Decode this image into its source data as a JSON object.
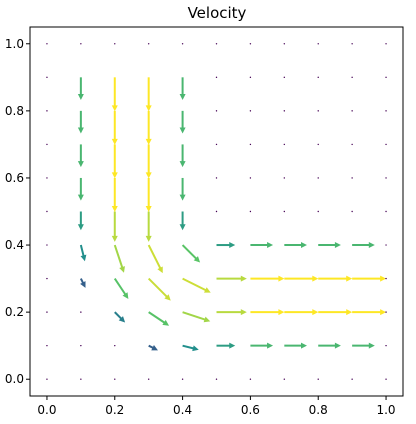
{
  "chart_data": {
    "type": "quiver",
    "title": "Velocity",
    "xlabel": "",
    "ylabel": "",
    "xlim": [
      -0.05,
      1.05
    ],
    "ylim": [
      -0.05,
      1.05
    ],
    "x_ticks": [
      "0.0",
      "0.2",
      "0.4",
      "0.6",
      "0.8",
      "1.0"
    ],
    "y_ticks": [
      "0.0",
      "0.2",
      "0.4",
      "0.6",
      "0.8",
      "1.0"
    ],
    "grid": false,
    "grid_x": [
      0,
      0.1,
      0.2,
      0.3,
      0.4,
      0.5,
      0.6,
      0.7,
      0.8,
      0.9,
      1.0
    ],
    "grid_y": [
      0,
      0.1,
      0.2,
      0.3,
      0.4,
      0.5,
      0.6,
      0.7,
      0.8,
      0.9,
      1.0
    ],
    "domain_note": "L-shaped channel: vertical leg x in [0,0.5], horizontal leg y in [0,0.5]",
    "colormap": [
      "#440154",
      "#3b528b",
      "#21918c",
      "#5ec962",
      "#fde725"
    ],
    "vectors": []
  }
}
